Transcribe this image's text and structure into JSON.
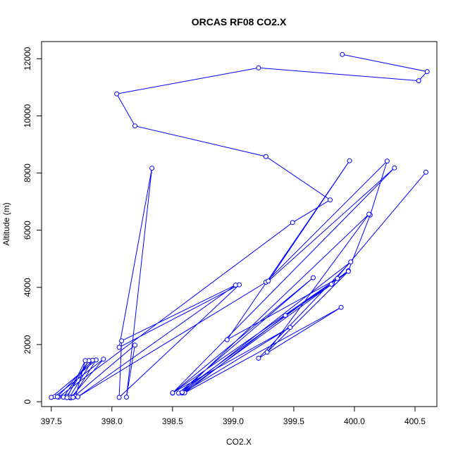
{
  "chart_data": {
    "type": "line",
    "title": "ORCAS RF08 CO2.X",
    "xlabel": "CO2.X",
    "ylabel": "Altitude (m)",
    "xlim": [
      397.42,
      400.68
    ],
    "ylim": [
      -170,
      12600
    ],
    "xticks": [
      397.5,
      398.0,
      398.5,
      399.0,
      399.5,
      400.0,
      400.5
    ],
    "xtick_labels": [
      "397.5",
      "398.0",
      "398.5",
      "399.0",
      "399.5",
      "400.0",
      "400.5"
    ],
    "yticks": [
      0,
      2000,
      4000,
      6000,
      8000,
      10000,
      12000
    ],
    "ytick_labels": [
      "0",
      "2000",
      "4000",
      "6000",
      "8000",
      "10000",
      "12000"
    ],
    "grid": false,
    "legend": "none",
    "series": [
      {
        "color": "#0000ff",
        "marker": "open-circle",
        "points": [
          [
            399.9,
            12150
          ],
          [
            400.6,
            11550
          ],
          [
            400.53,
            11230
          ],
          [
            399.21,
            11680
          ],
          [
            398.04,
            10770
          ],
          [
            398.19,
            9650
          ],
          [
            399.27,
            8580
          ],
          [
            399.8,
            7060
          ],
          [
            399.49,
            6270
          ],
          [
            397.56,
            160
          ],
          [
            397.66,
            130
          ],
          [
            397.93,
            1490
          ],
          [
            397.53,
            180
          ],
          [
            397.68,
            170
          ],
          [
            397.87,
            1460
          ],
          [
            397.5,
            150
          ],
          [
            397.65,
            160
          ],
          [
            397.84,
            1450
          ],
          [
            397.55,
            170
          ],
          [
            397.63,
            190
          ],
          [
            397.81,
            1440
          ],
          [
            397.6,
            160
          ],
          [
            397.7,
            190
          ],
          [
            397.78,
            1440
          ],
          [
            397.63,
            140
          ],
          [
            397.68,
            150
          ],
          [
            398.19,
            1980
          ],
          [
            398.12,
            160
          ],
          [
            398.33,
            8170
          ],
          [
            398.06,
            1900
          ],
          [
            399.05,
            4090
          ],
          [
            398.06,
            150
          ],
          [
            398.08,
            2130
          ],
          [
            399.02,
            4080
          ],
          [
            397.72,
            170
          ],
          [
            399.27,
            4180
          ],
          [
            400.27,
            8420
          ],
          [
            400.13,
            6530
          ],
          [
            399.95,
            4580
          ],
          [
            398.55,
            300
          ],
          [
            399.66,
            4340
          ],
          [
            398.5,
            300
          ],
          [
            400.33,
            8180
          ],
          [
            399.29,
            4220
          ],
          [
            399.96,
            8430
          ],
          [
            398.95,
            2170
          ],
          [
            399.86,
            4310
          ],
          [
            398.5,
            310
          ],
          [
            399.47,
            2600
          ],
          [
            398.58,
            300
          ],
          [
            399.82,
            4130
          ],
          [
            399.43,
            3020
          ],
          [
            398.6,
            310
          ],
          [
            399.89,
            3300
          ],
          [
            399.21,
            1520
          ],
          [
            399.97,
            4890
          ],
          [
            398.58,
            330
          ],
          [
            400.12,
            6560
          ],
          [
            399.28,
            1730
          ],
          [
            399.95,
            4560
          ],
          [
            399.81,
            4110
          ],
          [
            400.59,
            8030
          ]
        ]
      }
    ]
  }
}
